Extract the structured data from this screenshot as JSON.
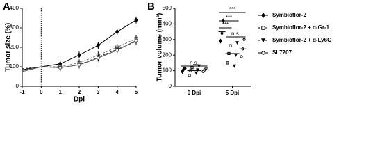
{
  "chart_data": [
    {
      "type": "line",
      "panel": "A",
      "ylabel": "Tumor size (%)",
      "xlabel": "Dpi",
      "x": [
        -1,
        0,
        1,
        2,
        3,
        4,
        5
      ],
      "xlim": [
        -1,
        5
      ],
      "xticks": [
        -1,
        0,
        1,
        2,
        3,
        4,
        5
      ],
      "ylim": [
        0,
        400
      ],
      "yticks": [
        0,
        100,
        200,
        300,
        400
      ],
      "series": [
        {
          "name": "Symbioflor-2",
          "color": "#000",
          "marker": "diamond",
          "dashed": false,
          "values": [
            85,
            100,
            115,
            160,
            210,
            280,
            340
          ]
        },
        {
          "name": "Symbioflor-2 + α-Gr-1",
          "color": "#666",
          "marker": "square",
          "dashed": true,
          "values": [
            80,
            100,
            100,
            120,
            160,
            200,
            245
          ]
        },
        {
          "name": "Symbioflor-2 + α-Ly6G",
          "color": "#333",
          "marker": "triangle-down",
          "dashed": true,
          "values": [
            90,
            100,
            95,
            110,
            150,
            190,
            230
          ]
        },
        {
          "name": "SL7207",
          "color": "#555",
          "marker": "circle",
          "dashed": false,
          "values": [
            75,
            100,
            95,
            110,
            145,
            185,
            235
          ]
        }
      ]
    },
    {
      "type": "dot",
      "panel": "B",
      "ylabel": "Tumor volume (mm³)",
      "categories": [
        "0 Dpi",
        "5 Dpi"
      ],
      "ylim": [
        0,
        500
      ],
      "yticks": [
        0,
        100,
        200,
        300,
        400,
        500
      ],
      "series": [
        {
          "name": "Symbioflor-2",
          "marker": "diamond",
          "values": [
            105,
            350
          ],
          "points": [
            [
              95,
              110,
              115
            ],
            [
              290,
              340,
              420
            ]
          ]
        },
        {
          "name": "Symbioflor-2 + α-Gr-1",
          "marker": "square",
          "values": [
            100,
            210
          ],
          "points": [
            [
              70,
              100,
              120
            ],
            [
              150,
              210,
              260
            ]
          ]
        },
        {
          "name": "Symbioflor-2 + α-Ly6G",
          "marker": "triangle-down",
          "values": [
            100,
            210
          ],
          "points": [
            [
              85,
              105,
              130
            ],
            [
              130,
              200,
              280
            ]
          ]
        },
        {
          "name": "SL7207",
          "marker": "circle",
          "values": [
            105,
            240
          ],
          "points": [
            [
              95,
              105,
              115
            ],
            [
              190,
              240,
              300
            ]
          ]
        }
      ],
      "annotations": [
        "n.s.",
        "***",
        "***",
        "***",
        "n.s."
      ]
    }
  ]
}
